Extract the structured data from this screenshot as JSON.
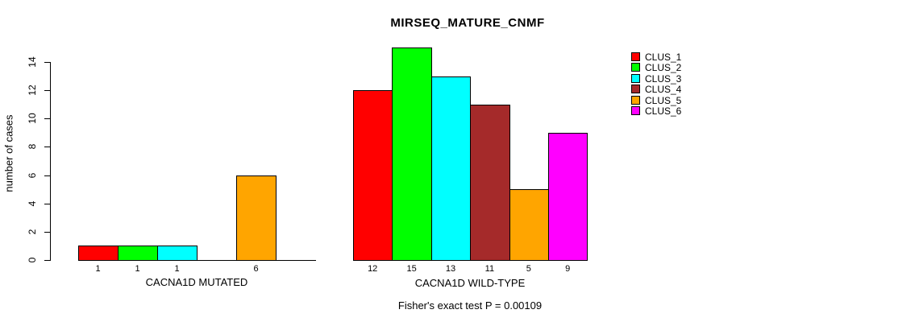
{
  "title": "MIRSEQ_MATURE_CNMF",
  "footer": "Fisher's exact test P = 0.00109",
  "chart_data": {
    "type": "bar",
    "title": "MIRSEQ_MATURE_CNMF",
    "xlabel": "",
    "ylabel": "number of cases",
    "ylim": [
      0,
      14
    ],
    "yticks": [
      0,
      2,
      4,
      6,
      8,
      10,
      12,
      14
    ],
    "grid": false,
    "legend_position": "right",
    "legend": [
      "CLUS_1",
      "CLUS_2",
      "CLUS_3",
      "CLUS_4",
      "CLUS_5",
      "CLUS_6"
    ],
    "colors": [
      "#ff0000",
      "#00ff00",
      "#00ffff",
      "#a52a2a",
      "#ffa500",
      "#ff00ff"
    ],
    "groups": [
      {
        "label": "CACNA1D MUTATED",
        "categories": [
          "CLUS_1",
          "CLUS_2",
          "CLUS_3",
          "CLUS_4",
          "CLUS_5",
          "CLUS_6"
        ],
        "values": [
          1,
          1,
          1,
          0,
          6,
          0
        ],
        "bar_labels": [
          "1",
          "1",
          "1",
          "",
          "6",
          ""
        ]
      },
      {
        "label": "CACNA1D WILD-TYPE",
        "categories": [
          "CLUS_1",
          "CLUS_2",
          "CLUS_3",
          "CLUS_4",
          "CLUS_5",
          "CLUS_6"
        ],
        "values": [
          12,
          15,
          13,
          11,
          5,
          9
        ],
        "bar_labels": [
          "12",
          "15",
          "13",
          "11",
          "5",
          "9"
        ]
      }
    ],
    "annotation": "Fisher's exact test P = 0.00109"
  }
}
